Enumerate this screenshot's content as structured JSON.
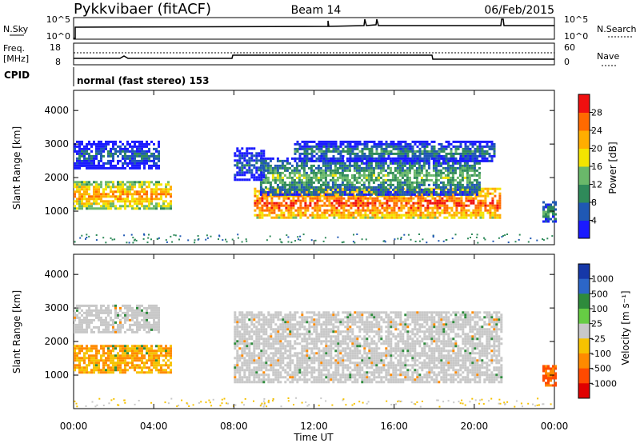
{
  "header": {
    "station": "Pykkvibaer (fitACF)",
    "beam": "Beam 14",
    "date": "06/Feb/2015"
  },
  "noise_panel": {
    "left_label": "N.Sky",
    "right_label": "N.Search",
    "left_ticks": [
      "10^5",
      "10^0"
    ],
    "right_ticks": [
      "10^5",
      "10^0"
    ]
  },
  "freq_panel": {
    "left_label_1": "Freq.",
    "left_label_2": "[MHz]",
    "right_label": "Nave",
    "left_ticks": [
      "18",
      "8"
    ],
    "right_ticks": [
      "60",
      "0"
    ]
  },
  "cpid": {
    "label": "CPID",
    "text": "normal (fast stereo) 153"
  },
  "x_axis": {
    "label": "Time UT",
    "ticks": [
      "00:00",
      "04:00",
      "08:00",
      "12:00",
      "16:00",
      "20:00",
      "00:00"
    ]
  },
  "chart_data": [
    {
      "type": "heatmap",
      "title": "",
      "ylabel": "Slant Range [km]",
      "xlabel": "Time UT",
      "y_ticks": [
        "1000",
        "2000",
        "3000",
        "4000"
      ],
      "ylim": [
        0,
        4600
      ],
      "colorbar": {
        "label": "Power [dB]",
        "ticks": [
          "4",
          "8",
          "12",
          "16",
          "20",
          "24",
          "28"
        ],
        "colors": [
          "#1a1aff",
          "#1f58b4",
          "#2f8a5a",
          "#6ab86a",
          "#f3e400",
          "#ffae00",
          "#ff6a00",
          "#f01010"
        ]
      },
      "regions": [
        {
          "t0": 0.0,
          "t1": 4.9,
          "r0": 1100,
          "r1": 1900,
          "level": 24
        },
        {
          "t0": 0.0,
          "t1": 4.2,
          "r0": 2300,
          "r1": 3100,
          "level": 8
        },
        {
          "t0": 9.0,
          "t1": 21.3,
          "r0": 800,
          "r1": 1700,
          "level": 28
        },
        {
          "t0": 9.3,
          "t1": 20.3,
          "r0": 1500,
          "r1": 2600,
          "level": 14
        },
        {
          "t0": 8.0,
          "t1": 9.5,
          "r0": 1900,
          "r1": 2900,
          "level": 8
        },
        {
          "t0": 11.0,
          "t1": 21.0,
          "r0": 2500,
          "r1": 3100,
          "level": 10
        },
        {
          "t0": 23.4,
          "t1": 24.0,
          "r0": 700,
          "r1": 1300,
          "level": 12
        }
      ]
    },
    {
      "type": "heatmap",
      "title": "",
      "ylabel": "Slant Range [km]",
      "xlabel": "Time UT",
      "y_ticks": [
        "1000",
        "2000",
        "3000",
        "4000"
      ],
      "ylim": [
        0,
        4600
      ],
      "colorbar": {
        "label": "Velocity [m s⁻¹]",
        "ticks": [
          "1000",
          "500",
          "100",
          "25",
          "-25",
          "-100",
          "-500",
          "-1000"
        ],
        "colors": [
          "#1638a8",
          "#2c66c8",
          "#2e8b3c",
          "#66cc44",
          "#c8c8c8",
          "#f6c200",
          "#ff8a00",
          "#ff4a00",
          "#e00000"
        ]
      },
      "regions": [
        {
          "t0": 0.0,
          "t1": 4.9,
          "r0": 1100,
          "r1": 1900,
          "level": -100
        },
        {
          "t0": 0.0,
          "t1": 4.2,
          "r0": 2300,
          "r1": 3100,
          "level": 0
        },
        {
          "t0": 8.0,
          "t1": 21.3,
          "r0": 800,
          "r1": 2900,
          "level": 0
        },
        {
          "t0": 23.4,
          "t1": 24.0,
          "r0": 700,
          "r1": 1300,
          "level": -500
        }
      ]
    }
  ]
}
